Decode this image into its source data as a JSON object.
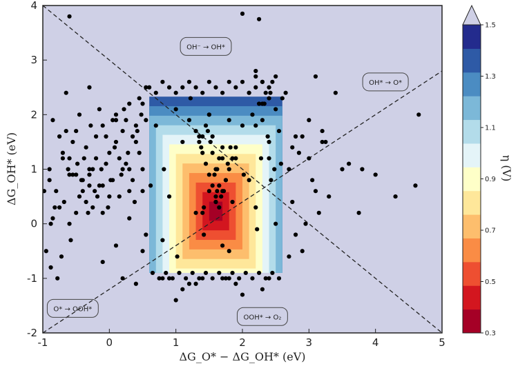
{
  "chart_data": {
    "type": "scatter",
    "title": "",
    "xlabel": "ΔG_O* − ΔG_OH* (eV)",
    "ylabel": "ΔG_OH* (eV)",
    "xlim": [
      -1,
      5
    ],
    "ylim": [
      -2,
      4
    ],
    "x_ticks": [
      -1,
      0,
      1,
      2,
      3,
      4,
      5
    ],
    "y_ticks": [
      -2,
      -1,
      0,
      1,
      2,
      3,
      4
    ],
    "background_color": "#cfd0e6",
    "grid": false,
    "volcano": {
      "x_range": [
        0.6,
        2.6
      ],
      "y_range": [
        -0.9,
        2.6
      ],
      "center": [
        1.6,
        0.23
      ],
      "step": 0.1,
      "max_level": 1.4
    },
    "boundary_lines": [
      {
        "from": [
          -1,
          4
        ],
        "to": [
          5,
          -2
        ]
      },
      {
        "from": [
          -1,
          -2
        ],
        "to": [
          5,
          2.8
        ]
      }
    ],
    "annotations": [
      {
        "text": "OH⁻ → OH*",
        "x": 1.45,
        "y": 3.25
      },
      {
        "text": "OH* → O*",
        "x": 4.15,
        "y": 2.6
      },
      {
        "text": "O* → OOH*",
        "x": -0.55,
        "y": -1.55
      },
      {
        "text": "OOH* → O₂",
        "x": 2.3,
        "y": -1.7
      }
    ],
    "colorbar": {
      "label": "η (V)",
      "vmin": 0.3,
      "vmax": 1.5,
      "ticks": [
        "0.3",
        "0.5",
        "0.7",
        "0.9",
        "1.1",
        "1.3",
        "1.5"
      ],
      "extend": "max",
      "colors": [
        "#a50026",
        "#d3161f",
        "#ee4f31",
        "#fa8c45",
        "#fdbe6d",
        "#fee79a",
        "#feffc8",
        "#e4f4f8",
        "#b3dcea",
        "#7cb8d8",
        "#4b8cc2",
        "#2e5aa6",
        "#232b8d"
      ],
      "over_color": "#cfd0e6"
    },
    "x": [
      -0.9,
      -0.85,
      -0.82,
      -0.75,
      -0.7,
      -0.72,
      -0.65,
      -0.6,
      -0.55,
      -0.5,
      -0.48,
      -0.45,
      -0.4,
      -0.35,
      -0.3,
      -0.28,
      -0.25,
      -0.2,
      -0.15,
      -0.1,
      -0.05,
      0.0,
      0.05,
      0.1,
      0.15,
      0.2,
      0.25,
      0.3,
      0.35,
      0.4,
      0.45,
      0.5,
      0.55,
      -0.95,
      -0.88,
      -0.78,
      -0.68,
      -0.58,
      -0.42,
      -0.32,
      -0.22,
      -0.12,
      -0.02,
      0.08,
      0.18,
      0.28,
      0.38,
      0.48,
      -0.8,
      -0.62,
      -0.38,
      -0.18,
      0.02,
      0.22,
      0.42,
      -0.9,
      -0.7,
      -0.5,
      -0.3,
      -0.1,
      0.1,
      0.3,
      0.5,
      -0.85,
      -0.65,
      -0.45,
      -0.25,
      -0.05,
      0.15,
      0.35,
      0.55,
      -0.75,
      -0.55,
      -0.35,
      -0.15,
      0.05,
      0.25,
      0.45,
      -0.6,
      -0.4,
      -0.2,
      0.0,
      0.2,
      0.4,
      -0.5,
      -0.3,
      -0.1,
      0.1,
      0.3,
      0.5,
      -0.98,
      -0.88,
      -0.6,
      0.2,
      0.4,
      0.5,
      0.55,
      0.3,
      0.1,
      -0.1,
      -0.3,
      0.6,
      0.7,
      0.8,
      0.9,
      1.0,
      1.1,
      1.2,
      1.3,
      1.4,
      1.5,
      1.6,
      1.7,
      1.8,
      1.9,
      2.0,
      2.1,
      2.2,
      2.3,
      2.4,
      2.5,
      0.65,
      0.75,
      0.85,
      0.95,
      1.05,
      1.15,
      1.25,
      1.35,
      1.45,
      1.55,
      1.65,
      1.75,
      1.85,
      1.95,
      2.05,
      2.15,
      2.25,
      2.35,
      2.45,
      2.55,
      0.7,
      0.9,
      1.1,
      1.3,
      1.5,
      1.7,
      1.9,
      2.1,
      2.3,
      2.5,
      0.8,
      1.0,
      1.2,
      1.4,
      1.6,
      1.8,
      2.0,
      2.2,
      2.4,
      0.62,
      0.82,
      1.02,
      1.22,
      1.42,
      1.62,
      1.82,
      2.02,
      2.22,
      2.42,
      2.58,
      1.3,
      1.35,
      1.4,
      1.45,
      1.5,
      1.55,
      1.6,
      1.65,
      1.7,
      1.75,
      1.8,
      1.85,
      1.9,
      1.35,
      1.45,
      1.55,
      1.65,
      1.75,
      1.85,
      1.4,
      1.5,
      1.6,
      1.7,
      1.8,
      1.38,
      1.48,
      1.58,
      1.68,
      1.78,
      1.42,
      1.52,
      1.62,
      1.72,
      1.5,
      1.6,
      1.7,
      1.55,
      1.65,
      2.1,
      2.2,
      2.3,
      2.4,
      2.15,
      2.25,
      2.35,
      2.45,
      2.5,
      2.2,
      2.3,
      2.4,
      2.55,
      2.28,
      2.38,
      2.48,
      2.33,
      2.43,
      2.6,
      2.65,
      2.7,
      2.75,
      2.8,
      2.9,
      3.0,
      3.1,
      3.2,
      3.3,
      2.7,
      2.8,
      2.95,
      3.05,
      3.15,
      2.75,
      2.85,
      3.25,
      3.5,
      3.75,
      4.0,
      4.3,
      4.6,
      4.65,
      3.8,
      3.1,
      3.2,
      3.0,
      2.9,
      3.6,
      3.4,
      2.2,
      2.4,
      1.9,
      2.3,
      1.0,
      1.2,
      0.8,
      1.4,
      1.1,
      0.9,
      1.3,
      1.8,
      2.0,
      1.7,
      -0.6,
      2.0,
      2.25
    ],
    "y": [
      0.8,
      1.9,
      0.3,
      1.6,
      1.2,
      -0.6,
      2.4,
      0.9,
      1.5,
      0.2,
      1.1,
      2.0,
      0.6,
      1.4,
      0.9,
      1.8,
      0.3,
      1.2,
      2.1,
      0.7,
      1.6,
      1.3,
      1.9,
      2.0,
      0.5,
      1.7,
      1.1,
      2.2,
      0.8,
      1.5,
      2.3,
      1.0,
      1.9,
      -0.5,
      0.0,
      -1.0,
      0.4,
      -0.3,
      0.8,
      0.2,
      0.6,
      1.0,
      0.3,
      1.4,
      0.9,
      1.3,
      0.4,
      2.0,
      0.6,
      1.0,
      1.2,
      0.5,
      0.8,
      2.1,
      1.7,
      1.0,
      1.3,
      0.9,
      0.7,
      1.8,
      1.5,
      0.6,
      2.2,
      0.1,
      1.7,
      0.5,
      1.0,
      1.1,
      1.2,
      1.6,
      2.5,
      0.3,
      0.9,
      0.4,
      0.7,
      0.8,
      1.9,
      1.3,
      1.2,
      0.8,
      1.6,
      0.5,
      1.0,
      1.8,
      1.7,
      1.0,
      0.2,
      1.9,
      1.0,
      0.6,
      0.6,
      -0.8,
      0.0,
      -1.0,
      -1.1,
      -0.5,
      -0.2,
      0.1,
      -0.4,
      -0.7,
      2.5,
      2.5,
      2.4,
      2.6,
      2.5,
      2.4,
      2.5,
      2.6,
      2.5,
      2.4,
      2.6,
      2.5,
      2.4,
      2.6,
      2.5,
      2.6,
      2.4,
      2.7,
      2.6,
      2.5,
      2.7,
      -0.9,
      -1.0,
      -0.9,
      -1.0,
      -0.9,
      -1.0,
      -0.9,
      -1.0,
      -0.9,
      -1.0,
      -0.9,
      -1.0,
      -0.9,
      -1.0,
      -0.9,
      -1.0,
      -0.9,
      -1.0,
      -0.9,
      -1.0,
      1.8,
      0.5,
      1.5,
      0.2,
      2.0,
      -0.4,
      1.2,
      0.8,
      2.2,
      0.0,
      -0.3,
      2.1,
      1.9,
      1.6,
      0.4,
      -0.5,
      1.8,
      0.3,
      1.2,
      0.7,
      1.0,
      -0.6,
      2.3,
      -0.2,
      0.6,
      1.4,
      0.9,
      -0.1,
      2.4,
      1.1,
      1.7,
      1.5,
      1.3,
      1.1,
      0.9,
      0.7,
      0.5,
      0.3,
      0.6,
      0.8,
      1.0,
      1.2,
      1.4,
      1.6,
      1.8,
      1.6,
      1.2,
      0.8,
      0.4,
      0.2,
      0.6,
      1.0,
      1.4,
      1.9,
      1.4,
      1.7,
      0.9,
      0.5,
      1.1,
      0.3,
      1.5,
      1.0,
      0.6,
      2.0,
      0.4,
      1.2,
      1.3,
      0.7,
      2.4,
      2.5,
      2.6,
      2.3,
      2.0,
      2.2,
      2.4,
      2.6,
      2.1,
      1.8,
      1.9,
      1.5,
      1.7,
      1.2,
      1.6,
      1.0,
      2.2,
      0.8,
      2.3,
      2.4,
      1.0,
      0.4,
      -0.2,
      -0.5,
      1.2,
      2.7,
      1.7,
      0.5,
      -0.6,
      1.6,
      0.0,
      0.8,
      0.2,
      1.4,
      1.3,
      1.5,
      1.0,
      0.2,
      0.9,
      0.5,
      0.7,
      2.0,
      1.0,
      0.6,
      1.5,
      1.9,
      1.6,
      1.1,
      2.4,
      2.8,
      -1.0,
      -1.1,
      -1.2,
      -1.4,
      -1.1,
      -1.0,
      -1.0,
      -1.2,
      -1.0,
      -1.1,
      -1.0,
      -1.3,
      -1.0,
      3.8,
      3.85,
      3.75
    ]
  }
}
